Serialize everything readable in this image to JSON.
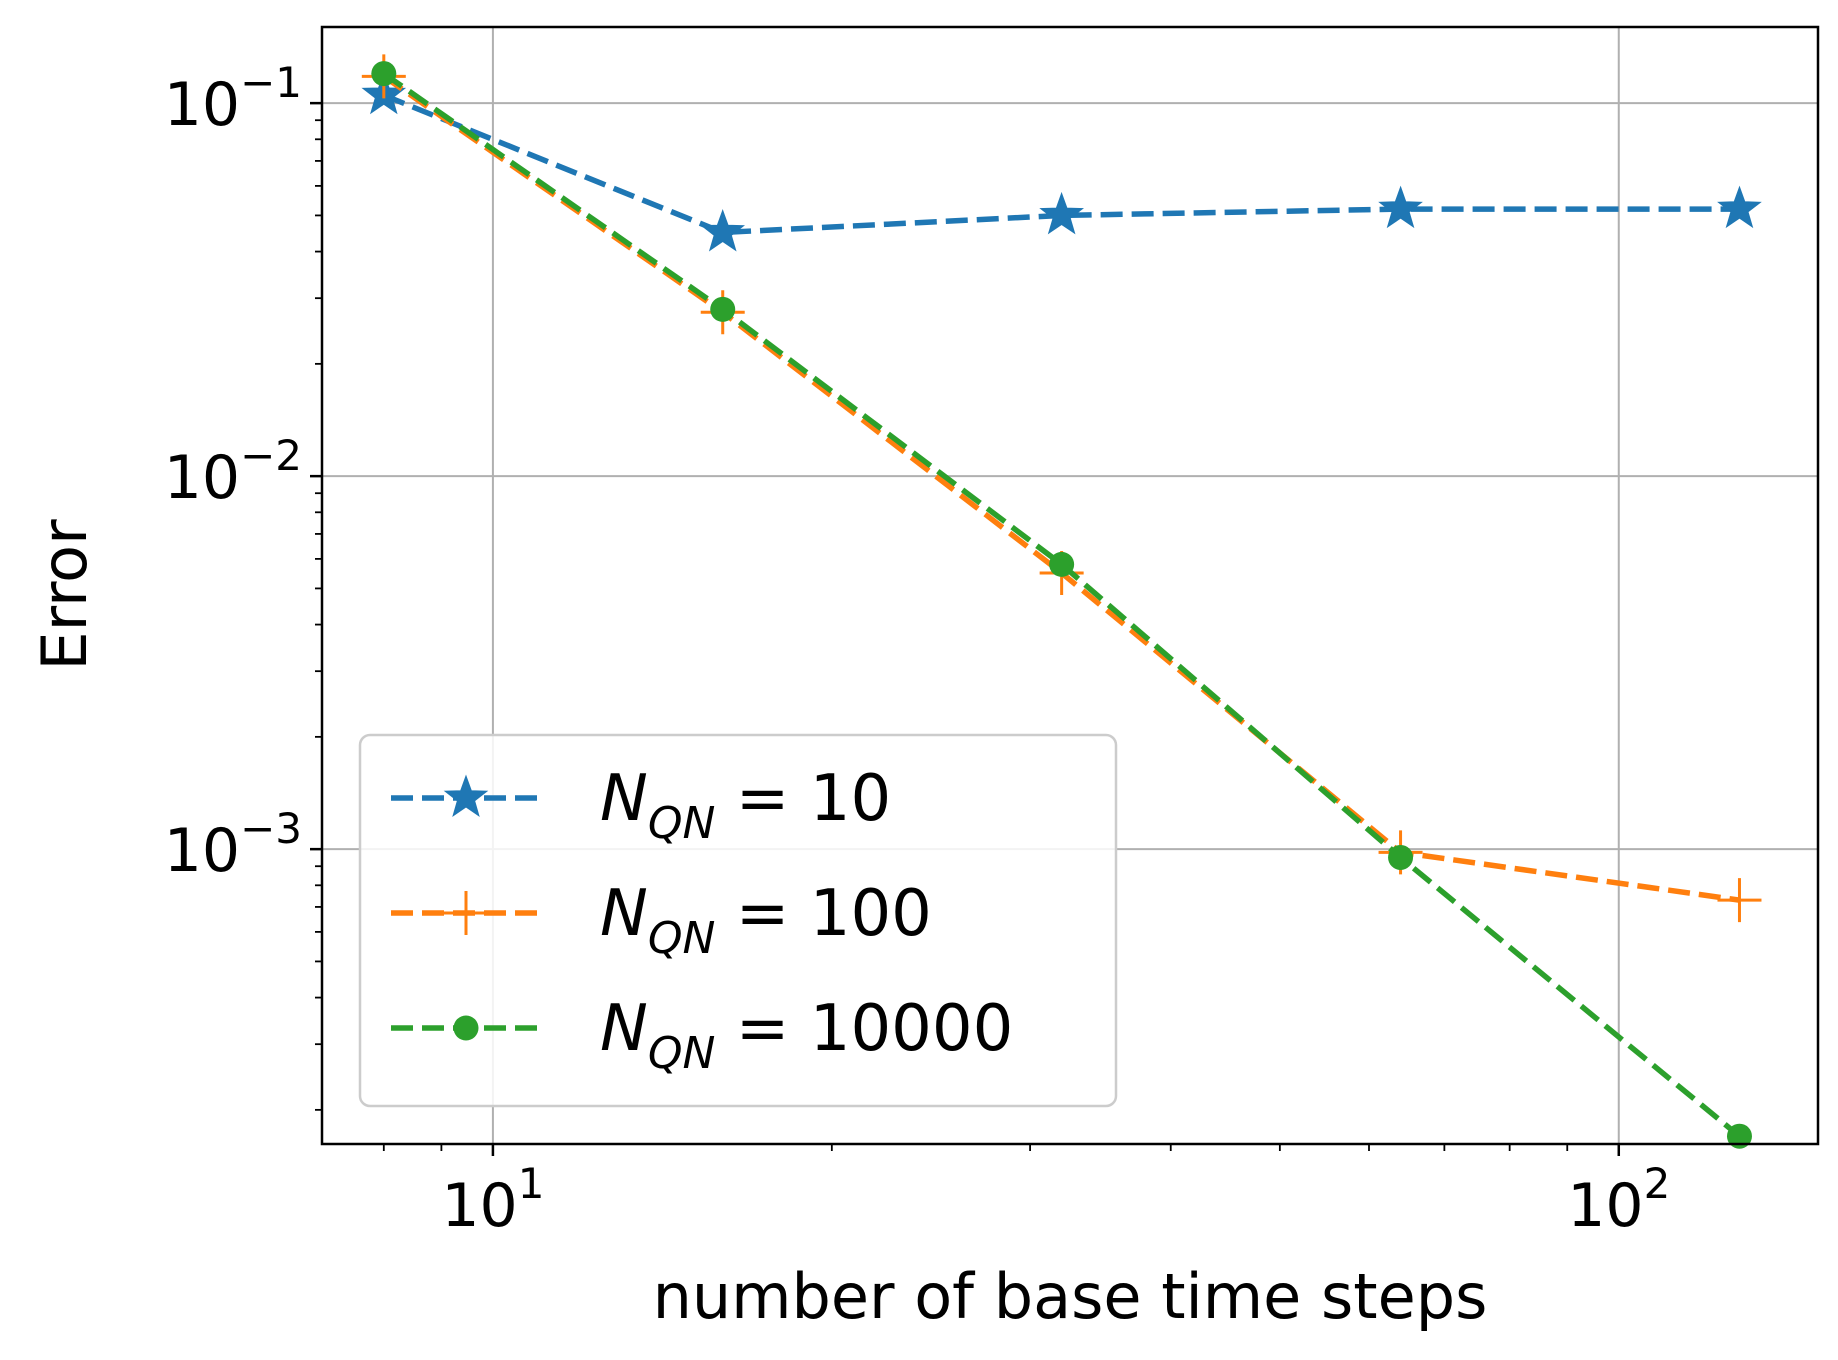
{
  "chart_data": {
    "type": "line",
    "title": "",
    "xlabel": "number of base time steps",
    "ylabel": "Error",
    "xscale": "log",
    "yscale": "log",
    "xlim": [
      7.05,
      150.3
    ],
    "ylim": [
      0.000162,
      0.16
    ],
    "grid": true,
    "legend_position": "lower-left",
    "x_ticks": [
      {
        "value": 10,
        "base": "10",
        "exp": "1"
      },
      {
        "value": 100,
        "base": "10",
        "exp": "2"
      }
    ],
    "y_ticks": [
      {
        "value": 0.1,
        "base": "10",
        "exp": "−1"
      },
      {
        "value": 0.01,
        "base": "10",
        "exp": "−2"
      },
      {
        "value": 0.001,
        "base": "10",
        "exp": "−3"
      }
    ],
    "x": [
      8,
      16,
      32,
      64,
      128
    ],
    "series": [
      {
        "name": "N_QN = 10",
        "legend_base": "N",
        "legend_sub": "QN",
        "legend_value": " = 10",
        "color": "#1f77b4",
        "marker": "star",
        "values": [
          0.105,
          0.045,
          0.05,
          0.052,
          0.052
        ]
      },
      {
        "name": "N_QN = 100",
        "legend_base": "N",
        "legend_sub": "QN",
        "legend_value": " = 100",
        "color": "#ff7f0e",
        "marker": "plus",
        "values": [
          0.118,
          0.0275,
          0.0055,
          0.00098,
          0.00073
        ]
      },
      {
        "name": "N_QN = 10000",
        "legend_base": "N",
        "legend_sub": "QN",
        "legend_value": " = 10000",
        "color": "#2ca02c",
        "marker": "circle",
        "values": [
          0.12,
          0.028,
          0.0058,
          0.00095,
          0.00017
        ]
      }
    ]
  }
}
